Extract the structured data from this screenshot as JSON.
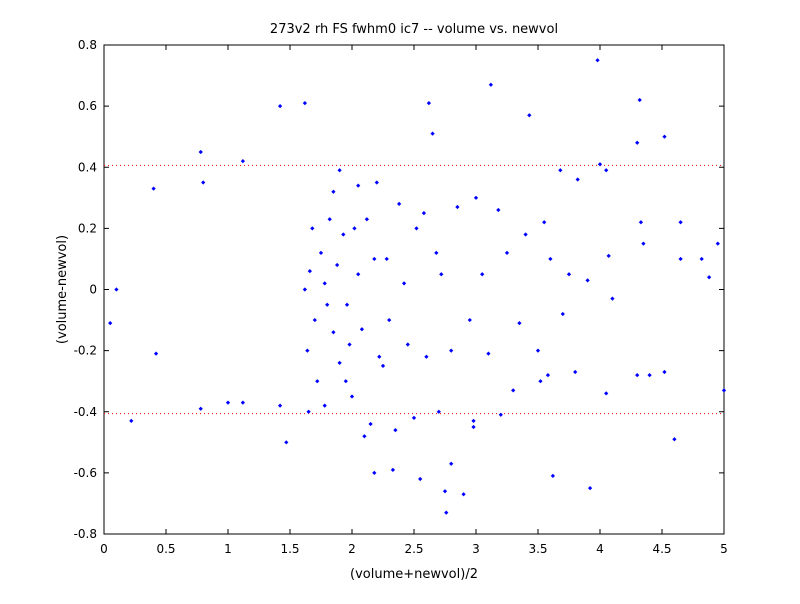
{
  "chart_data": {
    "type": "scatter",
    "title": "273v2 rh FS fwhm0 ic7 -- volume vs. newvol",
    "xlabel": "(volume+newvol)/2",
    "ylabel": "(volume-newvol)",
    "xlim": [
      0,
      5
    ],
    "ylim": [
      -0.8,
      0.8
    ],
    "xticks": [
      0,
      0.5,
      1,
      1.5,
      2,
      2.5,
      3,
      3.5,
      4,
      4.5,
      5
    ],
    "yticks": [
      -0.8,
      -0.6,
      -0.4,
      -0.2,
      0,
      0.2,
      0.4,
      0.6,
      0.8
    ],
    "xtick_labels": [
      "0",
      "0.5",
      "1",
      "1.5",
      "2",
      "2.5",
      "3",
      "3.5",
      "4",
      "4.5",
      "5"
    ],
    "ytick_labels": [
      "-0.8",
      "-0.6",
      "-0.4",
      "-0.2",
      "0",
      "0.2",
      "0.4",
      "0.6",
      "0.8"
    ],
    "grid": false,
    "reference_lines": [
      {
        "y": 0.406,
        "style": "dotted",
        "color": "#ff0000"
      },
      {
        "y": -0.406,
        "style": "dotted",
        "color": "#ff0000"
      }
    ],
    "marker_color": "#0000ff",
    "series": [
      {
        "points": [
          [
            0.05,
            -0.11
          ],
          [
            0.1,
            0.0
          ],
          [
            0.22,
            -0.43
          ],
          [
            0.4,
            0.33
          ],
          [
            0.42,
            -0.21
          ],
          [
            0.78,
            0.45
          ],
          [
            0.8,
            0.35
          ],
          [
            0.78,
            -0.39
          ],
          [
            1.0,
            -0.37
          ],
          [
            1.12,
            0.42
          ],
          [
            1.12,
            -0.37
          ],
          [
            1.42,
            0.6
          ],
          [
            1.42,
            -0.38
          ],
          [
            1.47,
            -0.5
          ],
          [
            1.62,
            0.61
          ],
          [
            1.65,
            -0.4
          ],
          [
            1.78,
            -0.38
          ],
          [
            1.85,
            0.32
          ],
          [
            1.9,
            0.39
          ],
          [
            1.95,
            -0.3
          ],
          [
            2.0,
            -0.35
          ],
          [
            2.05,
            0.34
          ],
          [
            2.1,
            -0.48
          ],
          [
            2.15,
            -0.44
          ],
          [
            2.18,
            -0.6
          ],
          [
            2.2,
            0.35
          ],
          [
            2.33,
            -0.59
          ],
          [
            2.35,
            -0.46
          ],
          [
            2.5,
            -0.42
          ],
          [
            2.55,
            -0.62
          ],
          [
            2.62,
            0.61
          ],
          [
            2.65,
            0.51
          ],
          [
            2.7,
            -0.4
          ],
          [
            2.75,
            -0.66
          ],
          [
            2.76,
            -0.73
          ],
          [
            2.8,
            -0.57
          ],
          [
            2.9,
            -0.67
          ],
          [
            2.98,
            -0.43
          ],
          [
            2.98,
            -0.45
          ],
          [
            3.12,
            0.67
          ],
          [
            3.2,
            -0.41
          ],
          [
            3.3,
            -0.33
          ],
          [
            3.43,
            0.57
          ],
          [
            3.5,
            -0.2
          ],
          [
            3.52,
            -0.3
          ],
          [
            3.58,
            -0.28
          ],
          [
            3.62,
            -0.61
          ],
          [
            3.68,
            0.39
          ],
          [
            3.82,
            0.36
          ],
          [
            3.92,
            -0.65
          ],
          [
            3.98,
            0.75
          ],
          [
            4.0,
            0.41
          ],
          [
            4.05,
            0.39
          ],
          [
            4.07,
            0.11
          ],
          [
            4.1,
            -0.03
          ],
          [
            4.05,
            -0.34
          ],
          [
            4.3,
            0.48
          ],
          [
            4.32,
            0.62
          ],
          [
            4.33,
            0.22
          ],
          [
            4.35,
            0.15
          ],
          [
            4.3,
            -0.28
          ],
          [
            4.4,
            -0.28
          ],
          [
            4.52,
            0.5
          ],
          [
            4.52,
            -0.27
          ],
          [
            4.6,
            -0.49
          ],
          [
            4.65,
            0.22
          ],
          [
            4.65,
            0.1
          ],
          [
            4.82,
            0.1
          ],
          [
            4.88,
            0.04
          ],
          [
            4.95,
            0.15
          ],
          [
            5.0,
            -0.33
          ],
          [
            3.8,
            -0.27
          ],
          [
            3.75,
            0.05
          ],
          [
            3.9,
            0.03
          ],
          [
            3.7,
            -0.08
          ],
          [
            3.6,
            0.1
          ],
          [
            3.55,
            0.22
          ],
          [
            3.4,
            0.18
          ],
          [
            3.35,
            -0.11
          ],
          [
            3.25,
            0.12
          ],
          [
            3.18,
            0.26
          ],
          [
            3.1,
            -0.21
          ],
          [
            3.05,
            0.05
          ],
          [
            3.0,
            0.3
          ],
          [
            2.95,
            -0.1
          ],
          [
            2.85,
            0.27
          ],
          [
            2.8,
            -0.2
          ],
          [
            2.72,
            0.05
          ],
          [
            2.68,
            0.12
          ],
          [
            2.6,
            -0.22
          ],
          [
            2.58,
            0.25
          ],
          [
            2.52,
            0.2
          ],
          [
            2.45,
            -0.18
          ],
          [
            2.42,
            0.02
          ],
          [
            2.38,
            0.28
          ],
          [
            2.3,
            -0.1
          ],
          [
            2.28,
            0.1
          ],
          [
            2.25,
            -0.25
          ],
          [
            2.22,
            -0.22
          ],
          [
            2.18,
            0.1
          ],
          [
            2.12,
            0.23
          ],
          [
            2.08,
            -0.13
          ],
          [
            2.05,
            0.05
          ],
          [
            2.02,
            0.2
          ],
          [
            1.98,
            -0.18
          ],
          [
            1.96,
            -0.05
          ],
          [
            1.93,
            0.18
          ],
          [
            1.9,
            -0.24
          ],
          [
            1.88,
            0.08
          ],
          [
            1.85,
            -0.14
          ],
          [
            1.82,
            0.23
          ],
          [
            1.8,
            -0.05
          ],
          [
            1.78,
            0.02
          ],
          [
            1.75,
            0.12
          ],
          [
            1.72,
            -0.3
          ],
          [
            1.7,
            -0.1
          ],
          [
            1.68,
            0.2
          ],
          [
            1.66,
            0.06
          ],
          [
            1.64,
            -0.2
          ],
          [
            1.62,
            0.0
          ]
        ]
      }
    ]
  }
}
